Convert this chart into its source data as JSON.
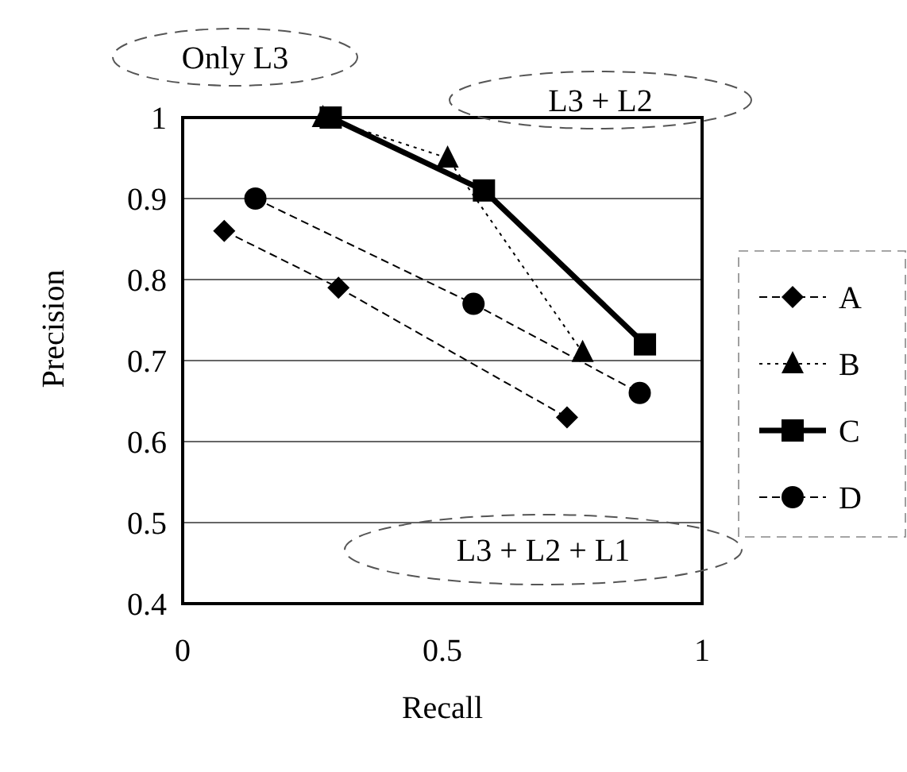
{
  "chart_data": {
    "type": "line",
    "xlabel": "Recall",
    "ylabel": "Precision",
    "xlim": [
      0,
      1
    ],
    "xticks": [
      0,
      0.5,
      1
    ],
    "ylim": [
      0.4,
      1
    ],
    "yticks": [
      0.4,
      0.5,
      0.6,
      0.7,
      0.8,
      0.9,
      1
    ],
    "grid": "y",
    "legend": "right",
    "annotations": [
      "Only L3",
      "L3 + L2",
      "L3 + L2 + L1"
    ],
    "series": [
      {
        "name": "A",
        "color": "#000000",
        "marker": "diamond",
        "line_style": "dashed",
        "x": [
          0.08,
          0.3,
          0.74
        ],
        "values": [
          0.86,
          0.79,
          0.63
        ]
      },
      {
        "name": "B",
        "color": "#000000",
        "marker": "triangle",
        "line_style": "dotted",
        "x": [
          0.27,
          0.51,
          0.77
        ],
        "values": [
          1.0,
          0.95,
          0.71
        ]
      },
      {
        "name": "C",
        "color": "#000000",
        "marker": "square",
        "line_style": "solid",
        "x": [
          0.285,
          0.58,
          0.89
        ],
        "values": [
          1.0,
          0.91,
          0.72
        ]
      },
      {
        "name": "D",
        "color": "#000000",
        "marker": "circle",
        "line_style": "dashed",
        "x": [
          0.14,
          0.56,
          0.88
        ],
        "values": [
          0.9,
          0.77,
          0.66
        ]
      }
    ]
  }
}
